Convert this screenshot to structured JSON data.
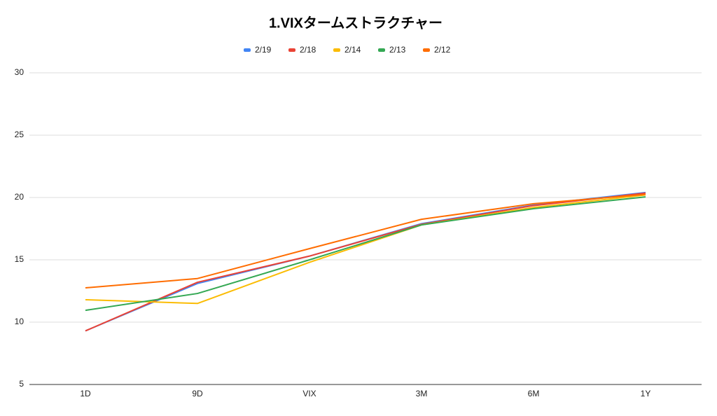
{
  "chart_data": {
    "type": "line",
    "title": "1.VIXタームストラクチャー",
    "categories": [
      "1D",
      "9D",
      "VIX",
      "3M",
      "6M",
      "1Y"
    ],
    "series": [
      {
        "name": "2/19",
        "color": "#4285f4",
        "values": [
          9.3,
          13.1,
          15.3,
          17.9,
          19.4,
          20.4
        ]
      },
      {
        "name": "2/18",
        "color": "#ea4335",
        "values": [
          9.3,
          13.2,
          15.3,
          17.85,
          19.35,
          20.35
        ]
      },
      {
        "name": "2/14",
        "color": "#fbbc04",
        "values": [
          11.8,
          11.5,
          14.8,
          17.8,
          19.2,
          20.2
        ]
      },
      {
        "name": "2/13",
        "color": "#34a853",
        "values": [
          10.95,
          12.3,
          15.0,
          17.8,
          19.1,
          20.05
        ]
      },
      {
        "name": "2/12",
        "color": "#ff6d01",
        "values": [
          12.75,
          13.5,
          15.9,
          18.25,
          19.5,
          20.25
        ]
      }
    ],
    "ylim": [
      5,
      30
    ],
    "yticks": [
      5,
      10,
      15,
      20,
      25,
      30
    ],
    "grid": true,
    "legend": "top"
  }
}
